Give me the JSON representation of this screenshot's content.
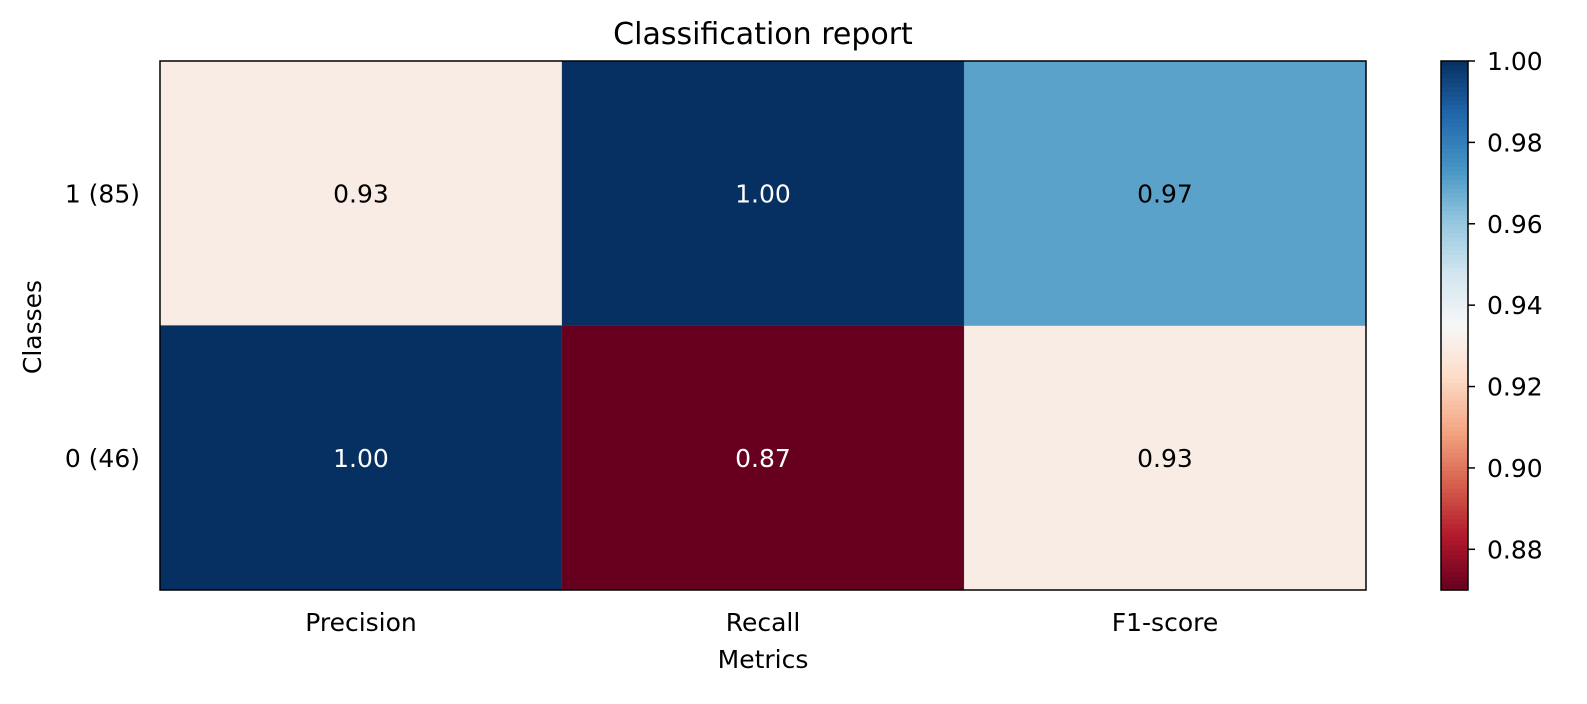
{
  "chart_data": {
    "type": "heatmap",
    "title": "Classification report",
    "xlabel": "Metrics",
    "ylabel": "Classes",
    "columns": [
      "Precision",
      "Recall",
      "F1-score"
    ],
    "rows": [
      "1 (85)",
      "0 (46)"
    ],
    "values": [
      [
        0.93,
        1.0,
        0.97
      ],
      [
        1.0,
        0.87,
        0.93
      ]
    ],
    "value_labels": [
      [
        "0.93",
        "1.00",
        "0.97"
      ],
      [
        "1.00",
        "0.87",
        "0.93"
      ]
    ],
    "colormap": "RdBu",
    "colorbar": {
      "range": [
        0.87,
        1.0
      ],
      "ticks": [
        0.88,
        0.9,
        0.92,
        0.94,
        0.96,
        0.98,
        1.0
      ],
      "tick_labels": [
        "0.88",
        "0.90",
        "0.92",
        "0.94",
        "0.96",
        "0.98",
        "1.00"
      ],
      "placement": "right"
    },
    "grid": false
  }
}
